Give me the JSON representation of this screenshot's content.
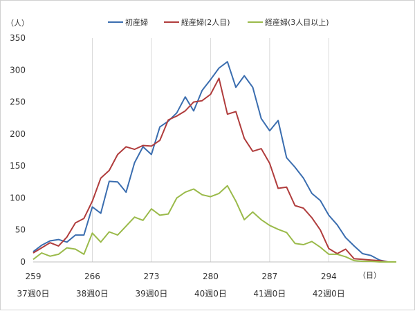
{
  "chart_data": {
    "type": "line",
    "y_unit": "（人）",
    "x_unit": "（日）",
    "ylim": [
      0,
      350
    ],
    "y_ticks": [
      0,
      50,
      100,
      150,
      200,
      250,
      300,
      350
    ],
    "xlim": [
      259,
      302
    ],
    "x_ticks": [
      259,
      266,
      273,
      280,
      287,
      294
    ],
    "x_secondary_labels": [
      {
        "x": 259,
        "label": "37週0日"
      },
      {
        "x": 266,
        "label": "38週0日"
      },
      {
        "x": 273,
        "label": "39週0日"
      },
      {
        "x": 280,
        "label": "40週0日"
      },
      {
        "x": 287,
        "label": "41週0日"
      },
      {
        "x": 294,
        "label": "42週0日"
      }
    ],
    "grid": "vertical",
    "legend_position": "top",
    "x": [
      259,
      260,
      261,
      262,
      263,
      264,
      265,
      266,
      267,
      268,
      269,
      270,
      271,
      272,
      273,
      274,
      275,
      276,
      277,
      278,
      279,
      280,
      281,
      282,
      283,
      284,
      285,
      286,
      287,
      288,
      289,
      290,
      291,
      292,
      293,
      294,
      295,
      296,
      297,
      298,
      299,
      300,
      301,
      302
    ],
    "series": [
      {
        "name": "初産婦",
        "color": "#3a6daf",
        "values": [
          16,
          26,
          33,
          35,
          31,
          42,
          42,
          86,
          76,
          126,
          125,
          109,
          155,
          180,
          168,
          211,
          220,
          233,
          258,
          236,
          268,
          285,
          303,
          313,
          273,
          291,
          273,
          224,
          205,
          221,
          163,
          148,
          131,
          107,
          96,
          73,
          58,
          38,
          25,
          13,
          10,
          3,
          0,
          0
        ]
      },
      {
        "name": "経産婦(2人目)",
        "color": "#b03c3c",
        "values": [
          14,
          22,
          30,
          25,
          39,
          61,
          68,
          95,
          131,
          143,
          168,
          180,
          176,
          182,
          181,
          190,
          222,
          228,
          236,
          250,
          252,
          262,
          287,
          231,
          235,
          193,
          173,
          177,
          154,
          115,
          117,
          88,
          84,
          69,
          50,
          21,
          13,
          20,
          5,
          4,
          3,
          2,
          0,
          0
        ]
      },
      {
        "name": "経産婦(3人目以上)",
        "color": "#9aba4a",
        "values": [
          4,
          14,
          9,
          12,
          22,
          20,
          12,
          45,
          31,
          47,
          42,
          56,
          70,
          65,
          83,
          73,
          75,
          100,
          109,
          114,
          105,
          102,
          107,
          119,
          95,
          66,
          78,
          66,
          57,
          51,
          46,
          29,
          27,
          32,
          23,
          12,
          12,
          8,
          2,
          1,
          1,
          0,
          0,
          0
        ]
      }
    ]
  }
}
